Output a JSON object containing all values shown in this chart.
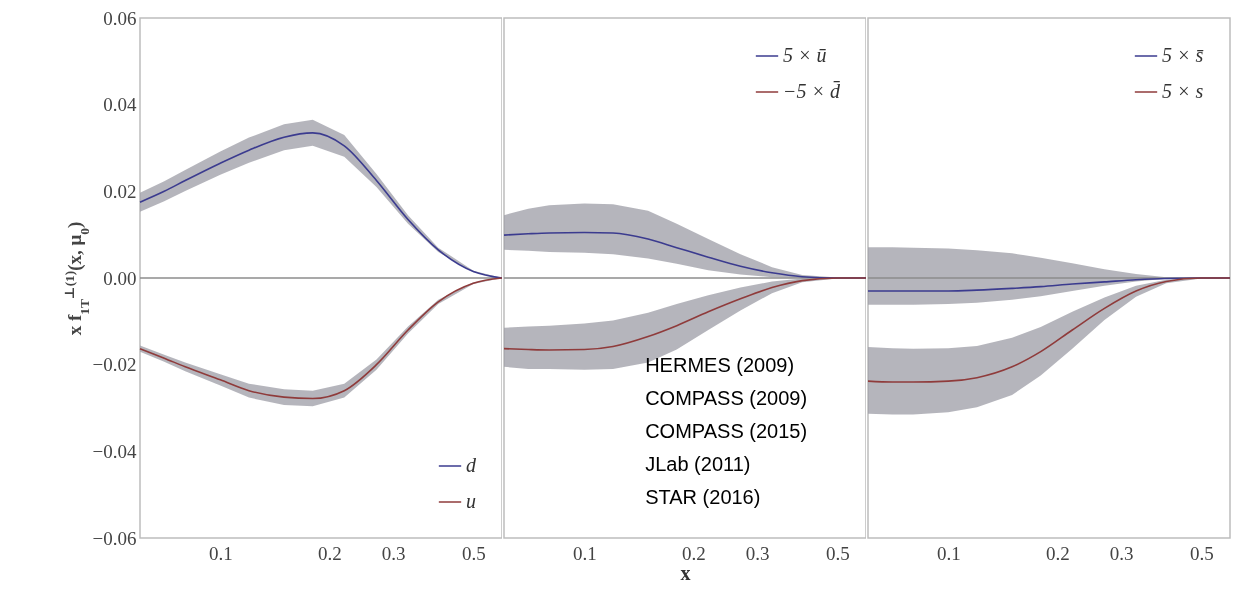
{
  "chart_data": [
    {
      "type": "line",
      "ylabel": "x f$_{1T}$$^{⊥(1)}$(x, μ$_{0}$)",
      "log": "x",
      "legend": "bottom right",
      "tick_labels": "xy",
      "xlim": [
        0.06,
        0.6
      ],
      "xticks": [
        0.1,
        0.2,
        0.3,
        0.5
      ],
      "ylim": [
        -0.06,
        0.06
      ],
      "yticks": [
        {
          "value": -0.06,
          "label": "−0.06"
        },
        {
          "value": -0.04,
          "label": "−0.04"
        },
        {
          "value": -0.02,
          "label": "−0.02"
        },
        {
          "value": 0,
          "label": "0.00"
        },
        {
          "value": 0.02,
          "label": "0.02"
        },
        {
          "value": 0.04,
          "label": "0.04"
        },
        {
          "value": 0.06,
          "label": "0.06"
        }
      ],
      "ref_lines": [
        {
          "axis": "y",
          "value": 0,
          "color": "#8c8c8c"
        }
      ],
      "x": [
        0.06,
        0.07,
        0.08,
        0.1,
        0.12,
        0.15,
        0.18,
        0.22,
        0.27,
        0.33,
        0.4,
        0.5,
        0.6
      ],
      "series": [
        {
          "name": "d",
          "color": "#3b3b8f",
          "values": [
            0.0175,
            0.02,
            0.0225,
            0.0265,
            0.0295,
            0.0325,
            0.0335,
            0.0305,
            0.0225,
            0.0135,
            0.0065,
            0.0015,
            0
          ],
          "lower": [
            0.0153,
            0.0177,
            0.0201,
            0.0238,
            0.0266,
            0.0295,
            0.0305,
            0.028,
            0.021,
            0.0125,
            0.006,
            0.0013,
            0
          ],
          "upper": [
            0.0197,
            0.0223,
            0.0249,
            0.0292,
            0.0324,
            0.0355,
            0.0365,
            0.033,
            0.024,
            0.0145,
            0.007,
            0.0017,
            0
          ]
        },
        {
          "name": "u",
          "color": "#8f3b3b",
          "values": [
            -0.0163,
            -0.0185,
            -0.0205,
            -0.0235,
            -0.026,
            -0.0275,
            -0.0278,
            -0.026,
            -0.02,
            -0.012,
            -0.0055,
            -0.0012,
            0
          ],
          "lower": [
            -0.017,
            -0.0193,
            -0.0215,
            -0.0248,
            -0.0276,
            -0.0293,
            -0.0296,
            -0.0276,
            -0.0212,
            -0.0128,
            -0.006,
            -0.0014,
            0
          ],
          "upper": [
            -0.0156,
            -0.0177,
            -0.0195,
            -0.0222,
            -0.0244,
            -0.0257,
            -0.026,
            -0.0244,
            -0.0188,
            -0.0112,
            -0.005,
            -0.001,
            0
          ]
        }
      ]
    },
    {
      "type": "line",
      "xlabel": "x",
      "log": "x",
      "legend": "top right",
      "tick_labels": "x",
      "xlim": [
        0.06,
        0.6
      ],
      "xticks": [
        0.1,
        0.2,
        0.3,
        0.5
      ],
      "ylim": [
        -0.06,
        0.06
      ],
      "ref_lines": [
        {
          "axis": "y",
          "value": 0,
          "color": "#8c8c8c"
        }
      ],
      "annotations": [
        "HERMES (2009)",
        "COMPASS (2009)",
        "COMPASS (2015)",
        "JLab (2011)",
        "STAR (2016)"
      ],
      "x": [
        0.06,
        0.07,
        0.08,
        0.1,
        0.12,
        0.15,
        0.18,
        0.22,
        0.27,
        0.33,
        0.4,
        0.5,
        0.6
      ],
      "series": [
        {
          "name": "5 × ū",
          "color": "#3b3b8f",
          "values": [
            0.0099,
            0.0102,
            0.0104,
            0.0105,
            0.0104,
            0.009,
            0.007,
            0.0048,
            0.0027,
            0.0012,
            0.0003,
            0,
            0
          ],
          "lower": [
            0.0065,
            0.0063,
            0.006,
            0.0058,
            0.0055,
            0.0045,
            0.0033,
            0.0018,
            0.0008,
            0.0002,
            0,
            0,
            0
          ],
          "upper": [
            0.0145,
            0.016,
            0.0168,
            0.0172,
            0.017,
            0.0155,
            0.0125,
            0.009,
            0.0055,
            0.0025,
            0.0007,
            0.0001,
            0
          ]
        },
        {
          "name": "−5 × d̄",
          "color": "#8f3b3b",
          "values": [
            -0.0163,
            -0.0165,
            -0.0166,
            -0.0165,
            -0.0158,
            -0.0135,
            -0.011,
            -0.0078,
            -0.0048,
            -0.0022,
            -0.0006,
            0,
            0
          ],
          "lower": [
            -0.0205,
            -0.021,
            -0.021,
            -0.0212,
            -0.021,
            -0.0195,
            -0.0165,
            -0.012,
            -0.0075,
            -0.0035,
            -0.001,
            -0.0001,
            0
          ],
          "upper": [
            -0.0115,
            -0.0112,
            -0.011,
            -0.0105,
            -0.0098,
            -0.008,
            -0.006,
            -0.004,
            -0.0022,
            -0.0008,
            -0.0001,
            0,
            0
          ]
        }
      ]
    },
    {
      "type": "line",
      "log": "x",
      "legend": "top right",
      "tick_labels": "x",
      "xlim": [
        0.06,
        0.6
      ],
      "xticks": [
        0.1,
        0.2,
        0.3,
        0.5
      ],
      "ylim": [
        -0.06,
        0.06
      ],
      "ref_lines": [
        {
          "axis": "y",
          "value": 0,
          "color": "#8c8c8c"
        }
      ],
      "x": [
        0.06,
        0.07,
        0.08,
        0.1,
        0.12,
        0.15,
        0.18,
        0.22,
        0.27,
        0.33,
        0.4,
        0.5,
        0.6
      ],
      "series": [
        {
          "name": "5 × s̄",
          "color": "#3b3b8f",
          "values": [
            -0.003,
            -0.003,
            -0.003,
            -0.003,
            -0.0028,
            -0.0024,
            -0.002,
            -0.0014,
            -0.0009,
            -0.0004,
            -0.0001,
            0,
            0
          ],
          "lower": [
            -0.0062,
            -0.0062,
            -0.0062,
            -0.006,
            -0.0057,
            -0.005,
            -0.0042,
            -0.003,
            -0.0018,
            -0.0008,
            -0.0002,
            0,
            0
          ],
          "upper": [
            0.0071,
            0.0071,
            0.007,
            0.0068,
            0.0064,
            0.0057,
            0.0047,
            0.0034,
            0.002,
            0.0009,
            0.0002,
            0,
            0
          ]
        },
        {
          "name": "5 × s",
          "color": "#8f3b3b",
          "values": [
            -0.0238,
            -0.024,
            -0.024,
            -0.0238,
            -0.023,
            -0.0205,
            -0.017,
            -0.012,
            -0.007,
            -0.003,
            -0.0008,
            0,
            0
          ],
          "lower": [
            -0.0313,
            -0.0315,
            -0.0315,
            -0.031,
            -0.0298,
            -0.027,
            -0.0225,
            -0.0163,
            -0.0097,
            -0.0043,
            -0.0012,
            -0.0001,
            0
          ],
          "upper": [
            -0.0159,
            -0.0162,
            -0.0163,
            -0.0162,
            -0.0157,
            -0.0138,
            -0.0113,
            -0.0078,
            -0.0045,
            -0.0018,
            -0.0004,
            0,
            0
          ]
        }
      ]
    }
  ]
}
